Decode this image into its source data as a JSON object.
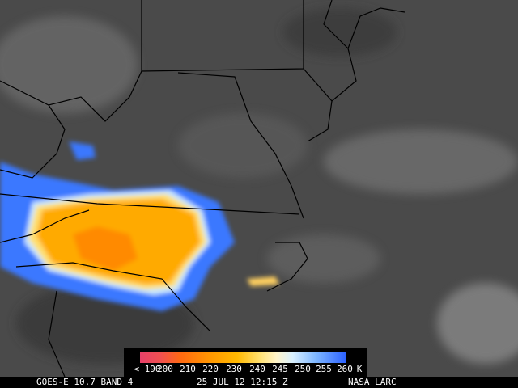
{
  "colorbar": {
    "labels": [
      "< 190",
      "200",
      "210",
      "220",
      "230",
      "240",
      "245",
      "250",
      "255",
      "260"
    ],
    "unit": "K"
  },
  "caption": {
    "satellite": "GOES-E 10.7 BAND 4",
    "time": "25 JUL 12 12:15 Z",
    "source": "NASA LARC"
  }
}
